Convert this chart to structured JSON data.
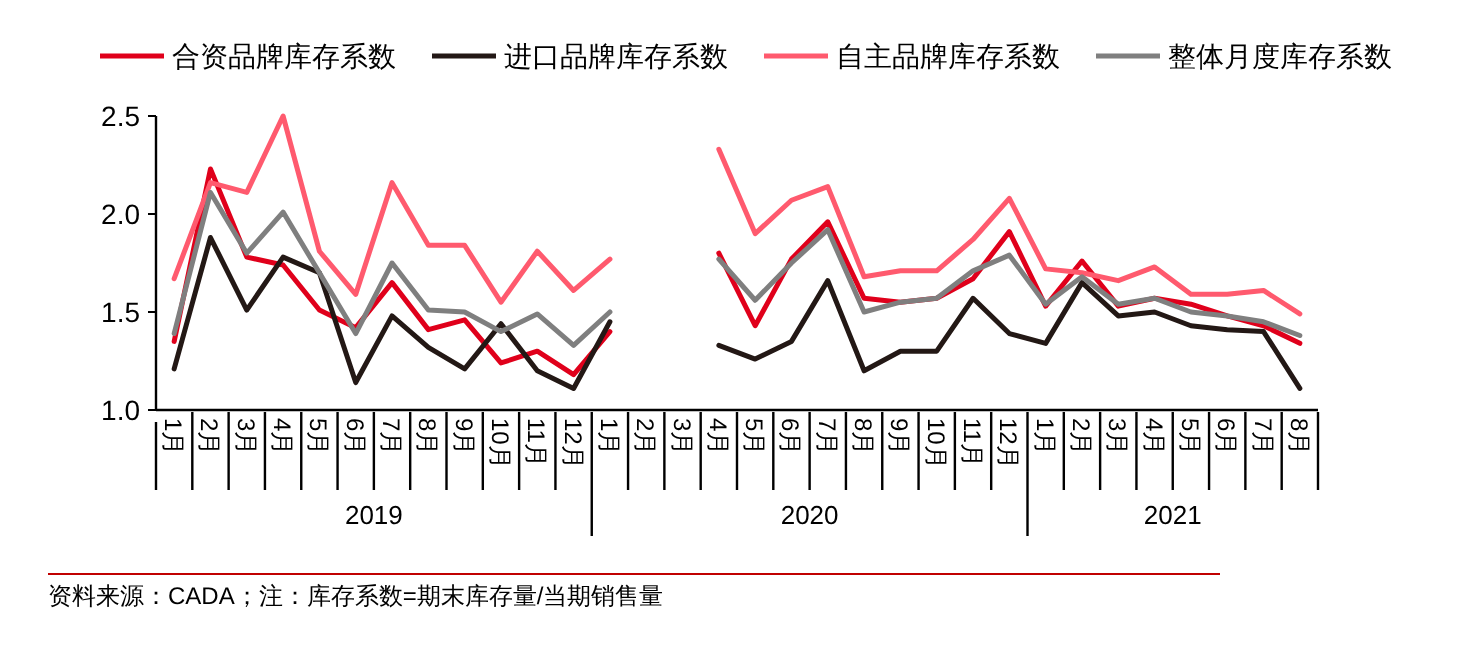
{
  "chart_data": {
    "type": "line",
    "categories": [
      "1月",
      "2月",
      "3月",
      "4月",
      "5月",
      "6月",
      "7月",
      "8月",
      "9月",
      "10月",
      "11月",
      "12月",
      "1月",
      "2月",
      "3月",
      "4月",
      "5月",
      "6月",
      "7月",
      "8月",
      "9月",
      "10月",
      "11月",
      "12月",
      "1月",
      "2月",
      "3月",
      "4月",
      "5月",
      "6月",
      "7月",
      "8月"
    ],
    "series": [
      {
        "name": "合资品牌库存系数",
        "color": "#e0001b",
        "values": [
          1.35,
          2.23,
          1.78,
          1.74,
          1.51,
          1.42,
          1.65,
          1.41,
          1.46,
          1.24,
          1.3,
          1.18,
          1.4,
          null,
          null,
          1.8,
          1.43,
          1.77,
          1.96,
          1.57,
          1.55,
          1.57,
          1.67,
          1.91,
          1.53,
          1.76,
          1.53,
          1.57,
          1.54,
          1.48,
          1.43,
          1.34
        ]
      },
      {
        "name": "进口品牌库存系数",
        "color": "#231815",
        "values": [
          1.21,
          1.88,
          1.51,
          1.78,
          1.7,
          1.14,
          1.48,
          1.32,
          1.21,
          1.44,
          1.2,
          1.11,
          1.45,
          null,
          null,
          1.33,
          1.26,
          1.35,
          1.66,
          1.2,
          1.3,
          1.3,
          1.57,
          1.39,
          1.34,
          1.65,
          1.48,
          1.5,
          1.43,
          1.41,
          1.4,
          1.11
        ]
      },
      {
        "name": "自主品牌库存系数",
        "color": "#ff5a6e",
        "values": [
          1.67,
          2.16,
          2.11,
          2.5,
          1.81,
          1.59,
          2.16,
          1.84,
          1.84,
          1.55,
          1.81,
          1.61,
          1.77,
          null,
          null,
          2.33,
          1.9,
          2.07,
          2.14,
          1.68,
          1.71,
          1.71,
          1.87,
          2.08,
          1.72,
          1.7,
          1.66,
          1.73,
          1.59,
          1.59,
          1.61,
          1.49
        ]
      },
      {
        "name": "整体月度库存系数",
        "color": "#7f7f7f",
        "values": [
          1.39,
          2.11,
          1.8,
          2.01,
          1.7,
          1.39,
          1.75,
          1.51,
          1.5,
          1.4,
          1.49,
          1.33,
          1.5,
          null,
          null,
          1.77,
          1.56,
          1.75,
          1.92,
          1.5,
          1.55,
          1.57,
          1.71,
          1.79,
          1.54,
          1.68,
          1.54,
          1.57,
          1.5,
          1.48,
          1.45,
          1.38
        ]
      }
    ],
    "ylim": [
      1.0,
      2.5
    ],
    "yticks": [
      {
        "value": 1.0,
        "label": "1.0"
      },
      {
        "value": 1.5,
        "label": "1.5"
      },
      {
        "value": 2.0,
        "label": "2.0"
      },
      {
        "value": 2.5,
        "label": "2.5"
      }
    ],
    "legend": "top",
    "grid": false,
    "marker": "none",
    "line_style": "solid",
    "annotations": [
      "2019",
      "2020",
      "2021",
      "资料来源：CADA；注：库存系数=期末库存量/当期销售量"
    ]
  }
}
